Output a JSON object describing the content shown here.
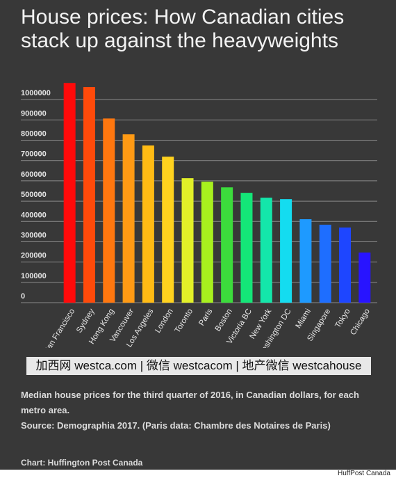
{
  "chart_data": {
    "type": "bar",
    "title": "House prices: How Canadian cities stack up against the heavyweights",
    "categories": [
      "San Francisco",
      "Sydney",
      "Hong Kong",
      "Vancouver",
      "Los Angeles",
      "London",
      "Toronto",
      "Paris",
      "Boston",
      "Victoria BC",
      "New York",
      "Washington DC",
      "Miami",
      "Singapore",
      "Tokyo",
      "Chicago"
    ],
    "values": [
      1082000,
      1062000,
      907000,
      829000,
      774000,
      719000,
      613000,
      596000,
      568000,
      541000,
      517000,
      510000,
      411000,
      384000,
      370000,
      247000
    ],
    "colors": [
      "#ff0a0a",
      "#ff4a0a",
      "#ff770f",
      "#ff9a14",
      "#ffbb14",
      "#ffd21e",
      "#e2f028",
      "#a8f01e",
      "#3cdc3c",
      "#14e678",
      "#14e6aa",
      "#14dcf0",
      "#1e9aff",
      "#1e6eff",
      "#1e46ff",
      "#2814ff"
    ],
    "ylim": [
      0,
      1100000
    ],
    "yticks": [
      0,
      100000,
      200000,
      300000,
      400000,
      500000,
      600000,
      700000,
      800000,
      900000,
      1000000
    ],
    "grid": true,
    "watermark": "加西网 westca.com | 微信 westcacom | 地产微信 westcahouse",
    "notes": "Median house prices for the third quarter of 2016, in Canadian dollars, for each metro area.",
    "source": "Source: Demographia 2017. (Paris data: Chambre des Notaires de Paris)",
    "credit": "Chart: Huffington Post Canada",
    "footer": "HuffPost Canada"
  }
}
